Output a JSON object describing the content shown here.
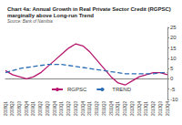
{
  "chart_data": {
    "type": "line",
    "title": "Chart 4a: Annual Growth in Real Private Sector Credit (RGPSC) marginally above Long-run Trend",
    "subtitle": "Source: Bank of Namibia",
    "categories": [
      "2008Q1",
      "2008Q2",
      "2008Q3",
      "2008Q4",
      "2009Q1",
      "2009Q2",
      "2009Q3",
      "2009Q4",
      "2010Q1",
      "2010Q2",
      "2010Q3",
      "2010Q4",
      "2011Q1",
      "2011Q2",
      "2011Q3",
      "2011Q4",
      "2012Q1",
      "2012Q2",
      "2012Q3",
      "2012Q4",
      "2013Q1",
      "2013Q2",
      "2013Q3",
      "2013Q4"
    ],
    "series": [
      {
        "name": "RGPSC",
        "color": "#b8176f",
        "line_style": "solid",
        "values": [
          4,
          2,
          1,
          0,
          1,
          3,
          6,
          9,
          12,
          15,
          17,
          16,
          13,
          9,
          5,
          1,
          -2,
          -3,
          -1,
          1,
          2,
          3,
          3,
          2
        ]
      },
      {
        "name": "TREND",
        "color": "#2a6db5",
        "line_style": "dashed",
        "values": [
          3,
          4,
          5,
          5.5,
          6,
          6.5,
          7,
          7,
          7,
          6.5,
          6,
          5.5,
          5,
          4.5,
          4,
          3.5,
          3,
          2.5,
          2.5,
          2.5,
          2.5,
          2.5,
          3,
          3
        ]
      }
    ],
    "ylim": [
      -10,
      25
    ],
    "yticks": [
      -10,
      -5,
      0,
      5,
      10,
      15,
      20,
      25
    ],
    "grid": false,
    "legend": "bottom"
  }
}
